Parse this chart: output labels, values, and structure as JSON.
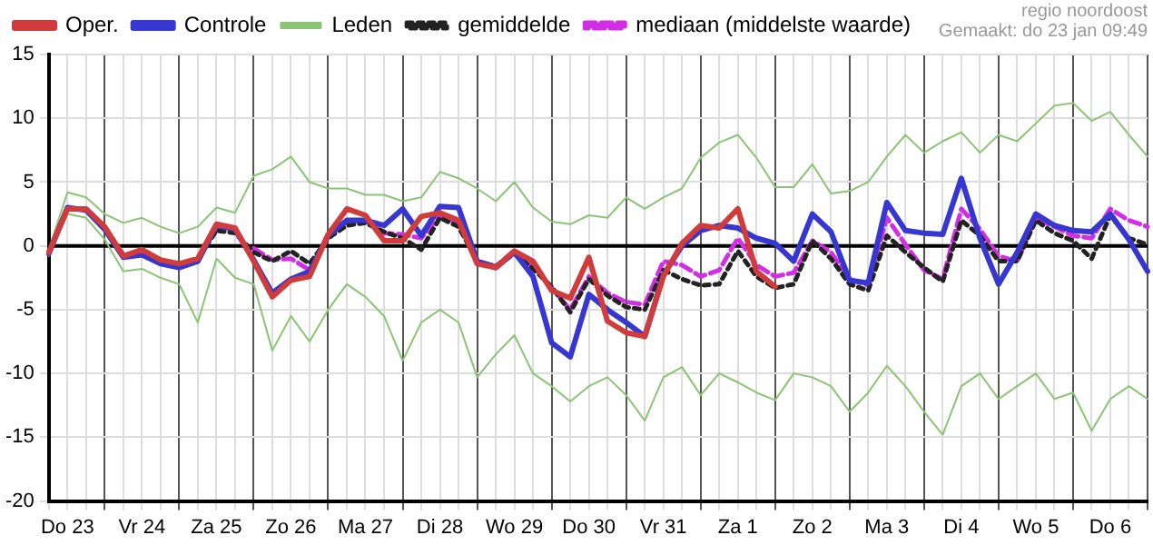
{
  "chart_data": {
    "type": "line",
    "annotations": [
      "regio noordoost",
      "Gemaakt: do 23 jan 09:49"
    ],
    "categories": [
      null,
      "Do 23",
      null,
      null,
      null,
      "Vr 24",
      null,
      null,
      null,
      "Za 25",
      null,
      null,
      null,
      "Zo 26",
      null,
      null,
      null,
      "Ma 27",
      null,
      null,
      null,
      "Di 28",
      null,
      null,
      null,
      "Wo 29",
      null,
      null,
      null,
      "Do 30",
      null,
      null,
      null,
      "Vr 31",
      null,
      null,
      null,
      "Za 1",
      null,
      null,
      null,
      "Zo 2",
      null,
      null,
      null,
      "Ma 3",
      null,
      null,
      null,
      "Di 4",
      null,
      null,
      null,
      "Wo 5",
      null,
      null,
      null,
      "Do 6",
      null,
      null
    ],
    "series": [
      {
        "name": "Oper.",
        "color": "#d03c3c",
        "values": [
          -0.5,
          2.9,
          2.9,
          1.5,
          -0.8,
          -0.3,
          -1.1,
          -1.4,
          -1.0,
          1.7,
          1.4,
          -1.2,
          -4.0,
          -2.7,
          -2.4,
          0.9,
          2.9,
          2.4,
          0.4,
          0.4,
          2.3,
          2.6,
          2.0,
          -1.4,
          -1.7,
          -0.4,
          -1.2,
          -3.5,
          -4.1,
          -0.9,
          -5.9,
          -6.8,
          -7.1,
          -2.4,
          0.2,
          1.6,
          1.4,
          2.9,
          -2.0,
          -3.2,
          null,
          null,
          null,
          null,
          null,
          null,
          null,
          null,
          null,
          null,
          null,
          null,
          null,
          null,
          null,
          null,
          null,
          null,
          null,
          null
        ]
      },
      {
        "name": "Controle",
        "color": "#3636d0",
        "values": [
          -0.6,
          3.0,
          2.8,
          1.3,
          -0.9,
          -0.7,
          -1.4,
          -1.7,
          -1.2,
          1.6,
          1.3,
          -1.1,
          -3.7,
          -2.6,
          -2.0,
          0.8,
          2.0,
          2.0,
          1.6,
          2.9,
          0.8,
          3.1,
          3.0,
          -1.2,
          -1.7,
          -0.5,
          -2.4,
          -7.6,
          -8.7,
          -3.8,
          -5.0,
          -6.0,
          -7.1,
          -2.3,
          0,
          1.2,
          1.6,
          1.4,
          0.6,
          0.2,
          -1.2,
          2.5,
          1.1,
          -2.7,
          -2.9,
          3.4,
          1.2,
          1.0,
          0.9,
          5.3,
          0.6,
          -3.0,
          -0.5,
          2.5,
          1.6,
          1.2,
          1.1,
          2.5,
          0.5,
          -2.0
        ]
      },
      {
        "name": "Leden",
        "color": "#8cc475",
        "values": [
          -0.3,
          4.2,
          3.8,
          2.5,
          1.8,
          2.2,
          1.5,
          1.0,
          1.5,
          3.0,
          2.6,
          5.5,
          6.0,
          7.0,
          5.0,
          4.5,
          4.5,
          4.0,
          4.0,
          3.5,
          3.8,
          5.8,
          5.3,
          4.5,
          3.5,
          5.0,
          3.0,
          1.9,
          1.7,
          2.4,
          2.2,
          3.8,
          2.9,
          3.8,
          4.5,
          6.9,
          8.1,
          8.7,
          6.9,
          4.6,
          4.6,
          6.4,
          4.1,
          4.3,
          5.0,
          7.0,
          8.7,
          7.3,
          8.2,
          8.9,
          7.3,
          8.7,
          8.2,
          9.6,
          11.0,
          11.2,
          9.8,
          10.5,
          8.7,
          7.0
        ]
      },
      {
        "name": "gemiddelde",
        "color": "#222222",
        "line_style": "dotted",
        "values": [
          -0.5,
          3.0,
          2.8,
          1.3,
          -0.7,
          -0.5,
          -1.2,
          -1.5,
          -1.0,
          1.2,
          1.0,
          -0.5,
          -1.2,
          -0.4,
          -1.4,
          0.6,
          1.6,
          1.8,
          1.1,
          0.6,
          -0.3,
          2.2,
          1.5,
          -1.2,
          -1.6,
          -0.6,
          -1.8,
          -3.2,
          -5.2,
          -2.6,
          -3.9,
          -4.8,
          -5.0,
          -1.9,
          -2.6,
          -3.1,
          -3.0,
          -0.4,
          -2.4,
          -3.3,
          -3.0,
          0.4,
          -1.0,
          -3.0,
          -3.5,
          0.8,
          -0.5,
          -1.7,
          -2.8,
          2.0,
          0.8,
          -1.2,
          -1.2,
          2.0,
          1.0,
          0.4,
          -1.0,
          2.4,
          0.6,
          0.1
        ]
      },
      {
        "name": "mediaan (middelste waarde)",
        "color": "#d22ee6",
        "line_style": "dashed",
        "values": [
          null,
          null,
          null,
          null,
          null,
          null,
          null,
          null,
          null,
          null,
          null,
          -0.2,
          -1.1,
          -1.0,
          -1.9,
          0.7,
          1.9,
          2.0,
          1.0,
          0.9,
          0.6,
          2.4,
          1.8,
          -1.2,
          -1.6,
          -0.4,
          -1.6,
          -3.3,
          -5.0,
          -2.4,
          -3.7,
          -4.4,
          -4.6,
          -1.2,
          -1.5,
          -2.4,
          -1.9,
          0.6,
          -1.5,
          -2.4,
          -2.1,
          0.4,
          -0.5,
          -2.6,
          -3.1,
          2.2,
          0.1,
          -1.9,
          -2.6,
          2.9,
          1.3,
          -0.8,
          -1.2,
          2.2,
          1.5,
          0.8,
          0.6,
          2.9,
          2.0,
          1.5
        ]
      },
      {
        "color": "#8cc475",
        "values": [
          -0.8,
          2.5,
          2.2,
          0.5,
          -2.0,
          -1.8,
          -2.5,
          -3.0,
          -6.0,
          -1.0,
          -2.5,
          -3.0,
          -8.2,
          -5.5,
          -7.5,
          -5.0,
          -3.0,
          -4.0,
          -5.5,
          -9.0,
          -6.0,
          -5.0,
          -6.0,
          -10.3,
          -8.5,
          -7.0,
          -10.0,
          -11.0,
          -12.2,
          -11.0,
          -10.3,
          -11.7,
          -13.7,
          -10.3,
          -9.5,
          -11.7,
          -10.0,
          -10.7,
          -11.5,
          -12.1,
          -10.0,
          -10.3,
          -11.0,
          -13.0,
          -11.5,
          -9.4,
          -11.0,
          -13.0,
          -14.8,
          -11.0,
          -10.0,
          -12.0,
          -11.0,
          -10.0,
          -12.0,
          -11.5,
          -14.5,
          -12.0,
          -11.0,
          -12.0
        ]
      }
    ],
    "ylim": [
      -20,
      15
    ],
    "yticks": [
      -20,
      -15,
      -10,
      -5,
      0,
      5,
      10,
      15
    ],
    "ref_lines": [
      {
        "axis": "y",
        "value": 0,
        "color": "#000000"
      }
    ],
    "grid": true,
    "legend": "top left",
    "marker": "none",
    "line_style": "solid"
  }
}
